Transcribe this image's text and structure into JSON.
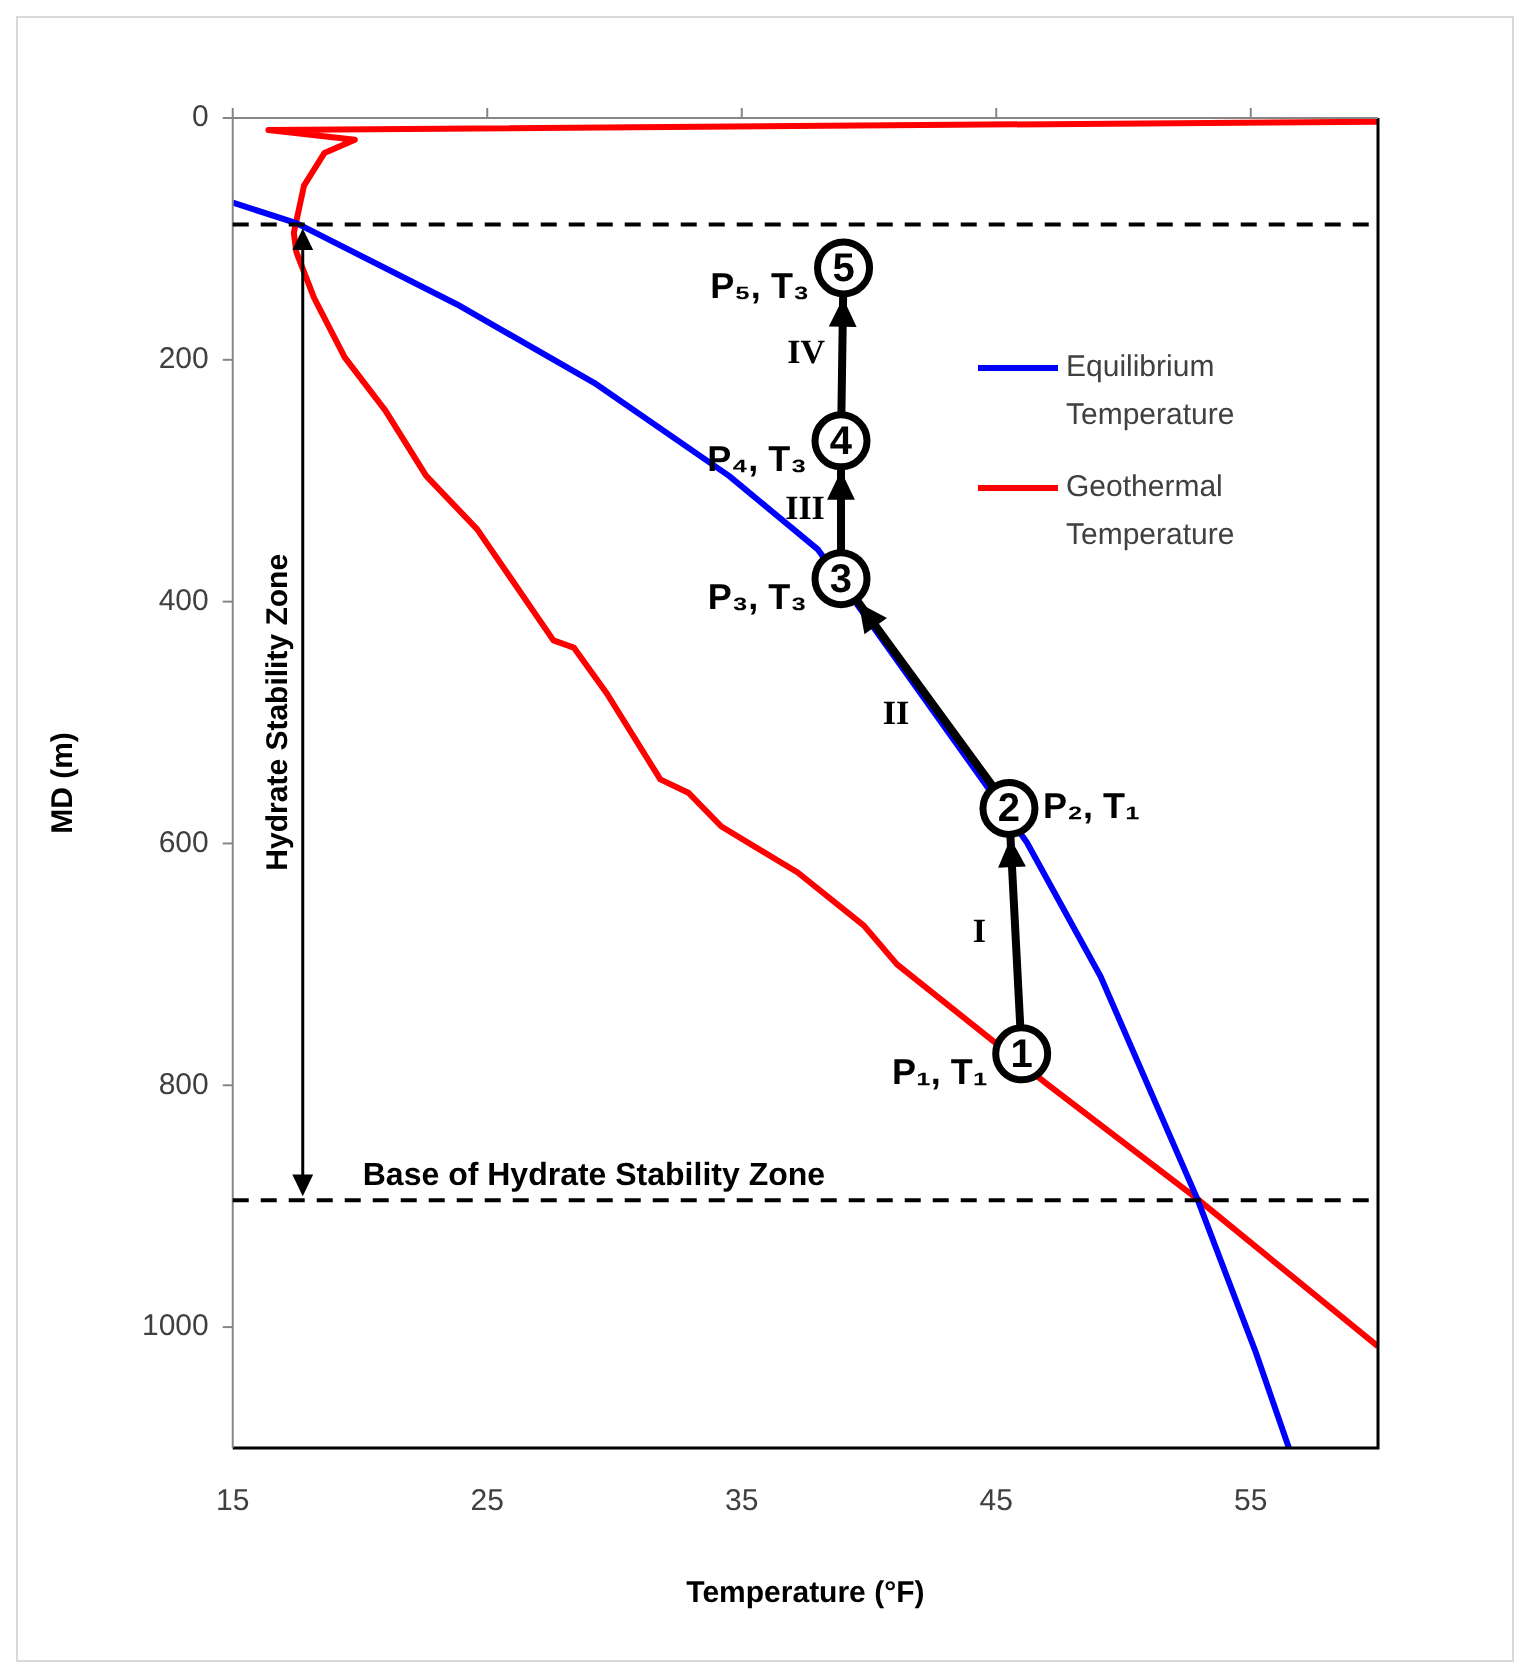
{
  "chart_data": {
    "type": "line",
    "xlabel": "Temperature (°F)",
    "ylabel": "MD (m)",
    "xlim": [
      15,
      60
    ],
    "xticks": [
      15,
      25,
      35,
      45,
      55
    ],
    "ylim": [
      1100,
      0
    ],
    "yticks": [
      0,
      200,
      400,
      600,
      800,
      1000
    ],
    "grid": false,
    "legend": "right",
    "line_style": "solid",
    "series": [
      {
        "name": "Equilibrium Temperature",
        "color": "#0000ff",
        "marker": "none",
        "x": [
          15,
          17.5,
          23.8,
          29.2,
          34.5,
          38,
          46.2,
          49.1,
          52.9,
          55.2,
          56.5
        ],
        "values": [
          70,
          87,
          154,
          219,
          296,
          357,
          599,
          710,
          894,
          1021,
          1100
        ]
      },
      {
        "name": "Geothermal Temperature",
        "color": "#ff0000",
        "marker": "none",
        "x": [
          60,
          16.4,
          19.8,
          18.6,
          17.8,
          17.4,
          17.5,
          18.2,
          19.4,
          21,
          22.6,
          24.6,
          27.6,
          28.4,
          29.7,
          31.8,
          32.9,
          34.2,
          37.2,
          39.8,
          41.1,
          47,
          52.9,
          60
        ],
        "values": [
          3,
          10,
          18,
          29,
          56,
          95,
          111,
          149,
          198,
          242,
          296,
          340,
          432,
          438,
          476,
          547,
          558,
          586,
          624,
          668,
          700,
          799,
          894,
          1016
        ]
      },
      {
        "color": "#000000",
        "marker": "circle",
        "x": [
          46,
          45.5,
          38.9,
          38.9,
          39
        ],
        "values": [
          774,
          571,
          381,
          267,
          124
        ]
      }
    ],
    "ref_lines": [
      {
        "axis": "y",
        "value": 88,
        "label": null,
        "color": "#000000",
        "line_style": "dashed"
      },
      {
        "axis": "y",
        "value": 895,
        "label": "Base of Hydrate Stability Zone",
        "color": "#000000",
        "line_style": "dashed"
      }
    ],
    "annotations": [
      "Hydrate Stability Zone",
      {
        "text": "1",
        "x": 46,
        "y": 774
      },
      {
        "text": "2",
        "x": 45.5,
        "y": 571
      },
      {
        "text": "3",
        "x": 38.9,
        "y": 381
      },
      {
        "text": "4",
        "x": 38.9,
        "y": 267
      },
      {
        "text": "5",
        "x": 39,
        "y": 124
      },
      {
        "text": "P₁, T₁",
        "x": 46,
        "y": 774
      },
      {
        "text": "P₂, T₁",
        "x": 45.5,
        "y": 571
      },
      {
        "text": "P₃, T₃",
        "x": 38.9,
        "y": 381
      },
      {
        "text": "P₄, T₃",
        "x": 38.9,
        "y": 267
      },
      {
        "text": "P₅, T₃",
        "x": 39,
        "y": 124
      },
      {
        "text": "I",
        "x": 45.75,
        "y": 672.5
      },
      {
        "text": "II",
        "x": 42.2,
        "y": 476
      },
      {
        "text": "III",
        "x": 38.9,
        "y": 324
      },
      {
        "text": "IV",
        "x": 38.95,
        "y": 195.5
      }
    ]
  }
}
